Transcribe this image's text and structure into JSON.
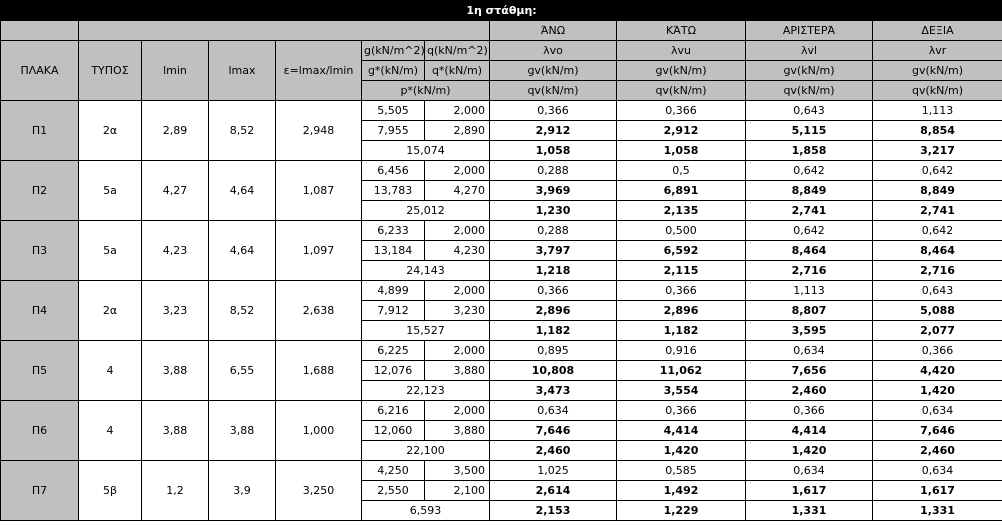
{
  "title": "1η στάθμη:",
  "headers": {
    "plate": "ΠΛΑΚΑ",
    "type": "ΤΥΠΟΣ",
    "lmin": "lmin",
    "lmax": "lmax",
    "ratio": "ε=lmax/lmin",
    "g_unit": "g(kN/m^2)",
    "q_unit": "q(kN/m^2)",
    "gstar_unit": "g*(kN/m)",
    "qstar_unit": "q*(kN/m)",
    "pstar_unit": "p*(kN/m)",
    "directions": [
      {
        "name": "ΆΝΩ",
        "lambda": "λvo",
        "gv": "gv(kN/m)",
        "qv": "qv(kN/m)"
      },
      {
        "name": "ΚΆΤΩ",
        "lambda": "λvu",
        "gv": "gv(kN/m)",
        "qv": "qv(kN/m)"
      },
      {
        "name": "ΑΡΙΣΤΕΡΆ",
        "lambda": "λvl",
        "gv": "gv(kN/m)",
        "qv": "qv(kN/m)"
      },
      {
        "name": "ΔΕΞΙΑ",
        "lambda": "λvr",
        "gv": "gv(kN/m)",
        "qv": "qv(kN/m)"
      }
    ]
  },
  "rows": [
    {
      "plate": "Π1",
      "type": "2α",
      "lmin": "2,89",
      "lmax": "8,52",
      "ratio": "2,948",
      "g": "5,505",
      "q": "2,000",
      "gstar": "7,955",
      "qstar": "2,890",
      "pstar": "15,074",
      "lambda": [
        "0,366",
        "0,366",
        "0,643",
        "1,113"
      ],
      "gv": [
        "2,912",
        "2,912",
        "5,115",
        "8,854"
      ],
      "qv": [
        "1,058",
        "1,058",
        "1,858",
        "3,217"
      ]
    },
    {
      "plate": "Π2",
      "type": "5a",
      "lmin": "4,27",
      "lmax": "4,64",
      "ratio": "1,087",
      "g": "6,456",
      "q": "2,000",
      "gstar": "13,783",
      "qstar": "4,270",
      "pstar": "25,012",
      "lambda": [
        "0,288",
        "0,5",
        "0,642",
        "0,642"
      ],
      "gv": [
        "3,969",
        "6,891",
        "8,849",
        "8,849"
      ],
      "qv": [
        "1,230",
        "2,135",
        "2,741",
        "2,741"
      ]
    },
    {
      "plate": "Π3",
      "type": "5a",
      "lmin": "4,23",
      "lmax": "4,64",
      "ratio": "1,097",
      "g": "6,233",
      "q": "2,000",
      "gstar": "13,184",
      "qstar": "4,230",
      "pstar": "24,143",
      "lambda": [
        "0,288",
        "0,500",
        "0,642",
        "0,642"
      ],
      "gv": [
        "3,797",
        "6,592",
        "8,464",
        "8,464"
      ],
      "qv": [
        "1,218",
        "2,115",
        "2,716",
        "2,716"
      ]
    },
    {
      "plate": "Π4",
      "type": "2α",
      "lmin": "3,23",
      "lmax": "8,52",
      "ratio": "2,638",
      "g": "4,899",
      "q": "2,000",
      "gstar": "7,912",
      "qstar": "3,230",
      "pstar": "15,527",
      "lambda": [
        "0,366",
        "0,366",
        "1,113",
        "0,643"
      ],
      "gv": [
        "2,896",
        "2,896",
        "8,807",
        "5,088"
      ],
      "qv": [
        "1,182",
        "1,182",
        "3,595",
        "2,077"
      ]
    },
    {
      "plate": "Π5",
      "type": "4",
      "lmin": "3,88",
      "lmax": "6,55",
      "ratio": "1,688",
      "g": "6,225",
      "q": "2,000",
      "gstar": "12,076",
      "qstar": "3,880",
      "pstar": "22,123",
      "lambda": [
        "0,895",
        "0,916",
        "0,634",
        "0,366"
      ],
      "gv": [
        "10,808",
        "11,062",
        "7,656",
        "4,420"
      ],
      "qv": [
        "3,473",
        "3,554",
        "2,460",
        "1,420"
      ]
    },
    {
      "plate": "Π6",
      "type": "4",
      "lmin": "3,88",
      "lmax": "3,88",
      "ratio": "1,000",
      "g": "6,216",
      "q": "2,000",
      "gstar": "12,060",
      "qstar": "3,880",
      "pstar": "22,100",
      "lambda": [
        "0,634",
        "0,366",
        "0,366",
        "0,634"
      ],
      "gv": [
        "7,646",
        "4,414",
        "4,414",
        "7,646"
      ],
      "qv": [
        "2,460",
        "1,420",
        "1,420",
        "2,460"
      ]
    },
    {
      "plate": "Π7",
      "type": "5β",
      "lmin": "1,2",
      "lmax": "3,9",
      "ratio": "3,250",
      "g": "4,250",
      "q": "3,500",
      "gstar": "2,550",
      "qstar": "2,100",
      "pstar": "6,593",
      "lambda": [
        "1,025",
        "0,585",
        "0,634",
        "0,634"
      ],
      "gv": [
        "2,614",
        "1,492",
        "1,617",
        "1,617"
      ],
      "qv": [
        "2,153",
        "1,229",
        "1,331",
        "1,331"
      ]
    }
  ]
}
